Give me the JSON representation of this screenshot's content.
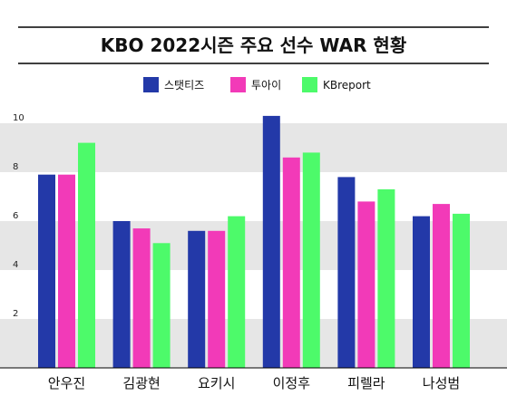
{
  "chart_data": {
    "type": "bar",
    "title": "KBO 2022시즌 주요 선수 WAR 현황",
    "xlabel": "",
    "ylabel": "",
    "categories": [
      "안우진",
      "김광현",
      "요키시",
      "이정후",
      "피렐라",
      "나성범"
    ],
    "series": [
      {
        "name": "스탯티즈",
        "values": [
          7.9,
          6.0,
          5.6,
          10.3,
          7.8,
          6.2
        ]
      },
      {
        "name": "투아이",
        "values": [
          7.9,
          5.7,
          5.6,
          8.6,
          6.8,
          6.7
        ]
      },
      {
        "name": "KBreport",
        "values": [
          9.2,
          5.1,
          6.2,
          8.8,
          7.3,
          6.3
        ]
      }
    ],
    "ylim": [
      0,
      10
    ],
    "yticks": [
      "2",
      "4",
      "6",
      "8",
      "10"
    ],
    "legend_position": "top-center",
    "grid": "alternating horizontal bands",
    "colors": {
      "series": [
        "#2339a8",
        "#f23ab8",
        "#4dfa6a"
      ],
      "band": "#e6e6e6",
      "rule": "#000000"
    }
  }
}
